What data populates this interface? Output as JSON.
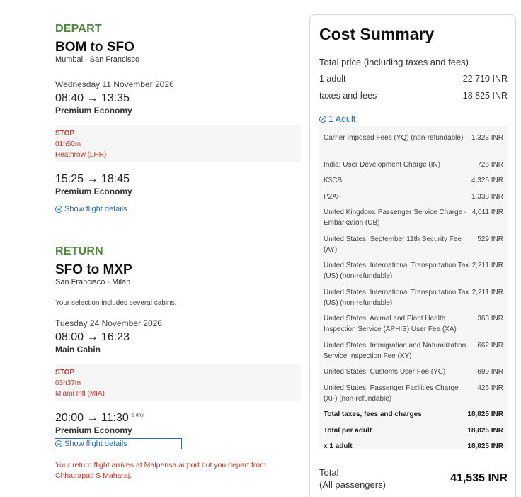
{
  "depart": {
    "section_title": "DEPART",
    "route": "BOM to SFO",
    "city_from": "Mumbai",
    "city_sep": "-",
    "city_to": "San Francisco",
    "date": "Wednesday 11 November 2026",
    "seg1": {
      "times": "08:40 → 13:35",
      "cabin": "Premium Economy"
    },
    "stop": {
      "label": "STOP",
      "duration": "01h50m",
      "airport": "Heathrow (LHR)"
    },
    "seg2": {
      "times": "15:25 → 18:45",
      "cabin": "Premium Economy"
    },
    "details_link": "Show flight details"
  },
  "return": {
    "section_title": "RETURN",
    "route": "SFO to MXP",
    "city_from": "San Francisco",
    "city_sep": "-",
    "city_to": "Milan",
    "note": "Your selection includes several cabins.",
    "date": "Tuesday 24 November 2026",
    "seg1": {
      "times": "08:00 → 16:23",
      "cabin": "Main Cabin"
    },
    "stop": {
      "label": "STOP",
      "duration": "03h37m",
      "airport": "Miami Intl (MIA)"
    },
    "seg2": {
      "times": "20:00 → 11:30",
      "plus_day": "+1 day",
      "cabin": "Premium Economy"
    },
    "details_link": "Show flight details",
    "warning": "Your return flight arrives at Malpensa airport but you depart from Chhatrapati S Maharaj."
  },
  "summary": {
    "title": "Cost Summary",
    "total_price_label": "Total price (including taxes and fees)",
    "adult_label": "1 adult",
    "adult_amount": "22,710  INR",
    "taxes_label": "taxes and fees",
    "taxes_amount": "18,825  INR",
    "toggle_label": "1 Adult",
    "items": [
      {
        "label": "Carrier Imposed Fees (YQ) (non-refundable)",
        "amount": "1,323  INR"
      },
      {
        "label": "India: User Development Charge (IN)",
        "amount": "726  INR"
      },
      {
        "label": "K3CB",
        "amount": "4,326  INR"
      },
      {
        "label": "P2AF",
        "amount": "1,338  INR"
      },
      {
        "label": "United Kingdom: Passenger Service Charge - Embarkation (UB)",
        "amount": "4,011  INR"
      },
      {
        "label": "United States: September 11th Security Fee (AY)",
        "amount": "529  INR"
      },
      {
        "label": "United States: International Transportation Tax (US) (non-refundable)",
        "amount": "2,211  INR"
      },
      {
        "label": "United States: International Transportation Tax (US) (non-refundable)",
        "amount": "2,211  INR"
      },
      {
        "label": "United States: Animal and Plant Health Inspection Service (APHIS) User Fee (XA)",
        "amount": "363  INR"
      },
      {
        "label": "United States: Immigration and Naturalization Service Inspection Fee (XY)",
        "amount": "662  INR"
      },
      {
        "label": "United States: Customs User Fee (YC)",
        "amount": "699  INR"
      },
      {
        "label": "United States: Passenger Facilities Charge (XF) (non-refundable)",
        "amount": "426  INR"
      }
    ],
    "total_taxes_label": "Total taxes, fees and charges",
    "total_taxes_amount": "18,825  INR",
    "total_per_adult_label": "Total per adult",
    "total_per_adult_amount": "18,825  INR",
    "x_adult_label": "x 1 adult",
    "x_adult_amount": "18,825  INR",
    "grand_label_1": "Total",
    "grand_label_2": "(All passengers)",
    "grand_amount": "41,535  INR"
  },
  "colors": {
    "green": "#4a8a3a",
    "link": "#2a6db0",
    "stop_red": "#c0392b"
  }
}
